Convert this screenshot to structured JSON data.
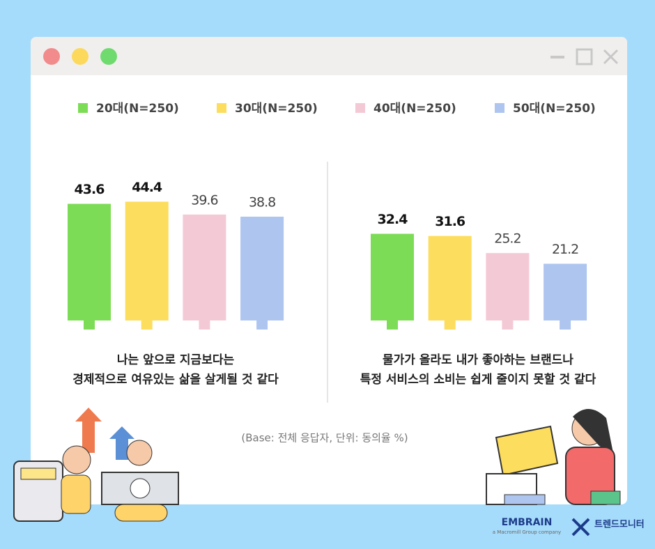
{
  "chart_data": {
    "type": "bar",
    "categories": [
      "나는 앞으로 지금보다는\n경제적으로 여유있는 삶을 살게될 것 같다",
      "물가가 올라도 내가 좋아하는 브랜드나\n특정 서비스의 소비는 쉽게 줄이지 못할 것 같다"
    ],
    "series": [
      {
        "name": "20대(N=250)",
        "color": "#7ddc55",
        "values": [
          43.6,
          32.4
        ]
      },
      {
        "name": "30대(N=250)",
        "color": "#fddd5e",
        "values": [
          44.4,
          31.6
        ]
      },
      {
        "name": "40대(N=250)",
        "color": "#f4c9d6",
        "values": [
          39.6,
          25.2
        ]
      },
      {
        "name": "50대(N=250)",
        "color": "#aec5f0",
        "values": [
          38.8,
          21.2
        ]
      }
    ],
    "ylim": [
      0,
      50
    ],
    "note": "(Base: 전체 응답자, 단위: 동의율 %)"
  },
  "footer": {
    "brand": "EMBRAIN",
    "tagline": "a Macromill Group company",
    "partner": "트렌드모니터"
  }
}
